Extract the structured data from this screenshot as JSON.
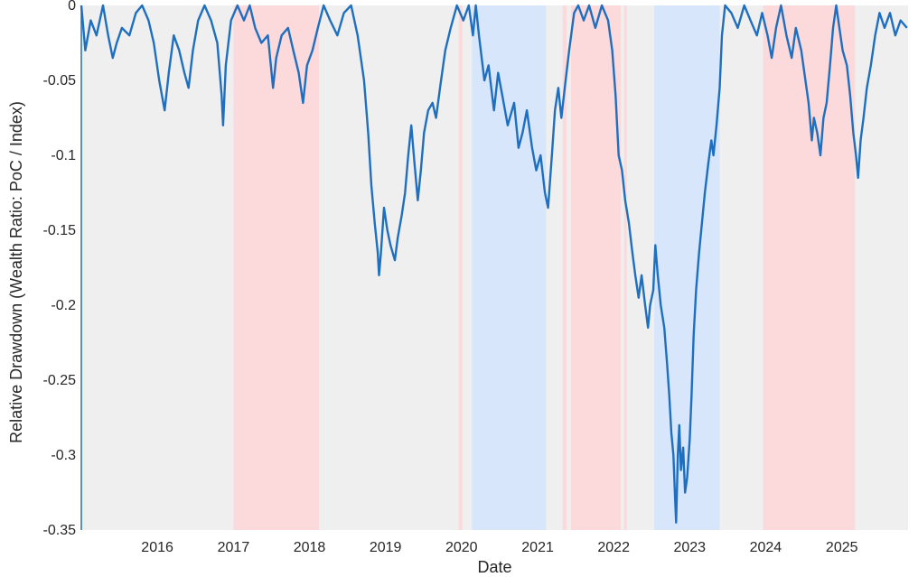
{
  "chart_data": {
    "type": "line",
    "title": "",
    "xlabel": "Date",
    "ylabel": "Relative Drawdown (Wealth Ratio: PoC / Index)",
    "xlim": [
      "2015-01-01",
      "2025-11-15"
    ],
    "ylim": [
      -0.35,
      0
    ],
    "grid": false,
    "legend": "none",
    "x_ticks": [
      {
        "date": "2016-01-01",
        "label": "2016"
      },
      {
        "date": "2017-01-01",
        "label": "2017"
      },
      {
        "date": "2018-01-01",
        "label": "2018"
      },
      {
        "date": "2019-01-01",
        "label": "2019"
      },
      {
        "date": "2020-01-01",
        "label": "2020"
      },
      {
        "date": "2021-01-01",
        "label": "2021"
      },
      {
        "date": "2022-01-01",
        "label": "2022"
      },
      {
        "date": "2023-01-01",
        "label": "2023"
      },
      {
        "date": "2024-01-01",
        "label": "2024"
      },
      {
        "date": "2025-01-01",
        "label": "2025"
      }
    ],
    "y_ticks": [
      {
        "value": 0,
        "label": "0"
      },
      {
        "value": -0.05,
        "label": "-0.05"
      },
      {
        "value": -0.1,
        "label": "-0.1"
      },
      {
        "value": -0.15,
        "label": "-0.15"
      },
      {
        "value": -0.2,
        "label": "-0.2"
      },
      {
        "value": -0.25,
        "label": "-0.25"
      },
      {
        "value": -0.3,
        "label": "-0.3"
      },
      {
        "value": -0.35,
        "label": "-0.35"
      }
    ],
    "colors": {
      "line": "#1f6fc0",
      "background": "#efefef",
      "regime_red": "#fcd9db",
      "regime_blue": "#d8e6fb"
    },
    "regimes": [
      {
        "start": "2017-01-01",
        "end": "2018-02-15",
        "color": "red"
      },
      {
        "start": "2019-12-20",
        "end": "2020-01-05",
        "color": "red"
      },
      {
        "start": "2020-02-20",
        "end": "2021-02-10",
        "color": "blue"
      },
      {
        "start": "2021-05-01",
        "end": "2021-05-20",
        "color": "red"
      },
      {
        "start": "2021-06-10",
        "end": "2022-02-05",
        "color": "red"
      },
      {
        "start": "2022-02-20",
        "end": "2022-03-05",
        "color": "red"
      },
      {
        "start": "2022-07-15",
        "end": "2023-05-25",
        "color": "blue"
      },
      {
        "start": "2023-12-20",
        "end": "2025-03-05",
        "color": "red"
      }
    ],
    "series": [
      {
        "values": [
          [
            "2015-01-01",
            0.0
          ],
          [
            "2015-01-20",
            -0.03
          ],
          [
            "2015-02-15",
            -0.01
          ],
          [
            "2015-03-15",
            -0.02
          ],
          [
            "2015-04-15",
            0.0
          ],
          [
            "2015-05-10",
            -0.02
          ],
          [
            "2015-06-01",
            -0.035
          ],
          [
            "2015-06-20",
            -0.025
          ],
          [
            "2015-07-15",
            -0.015
          ],
          [
            "2015-08-20",
            -0.02
          ],
          [
            "2015-09-20",
            -0.005
          ],
          [
            "2015-10-20",
            0.0
          ],
          [
            "2015-11-20",
            -0.01
          ],
          [
            "2015-12-15",
            -0.025
          ],
          [
            "2016-01-10",
            -0.05
          ],
          [
            "2016-02-05",
            -0.07
          ],
          [
            "2016-02-25",
            -0.045
          ],
          [
            "2016-03-20",
            -0.02
          ],
          [
            "2016-04-15",
            -0.03
          ],
          [
            "2016-05-10",
            -0.045
          ],
          [
            "2016-05-30",
            -0.055
          ],
          [
            "2016-06-20",
            -0.03
          ],
          [
            "2016-07-15",
            -0.01
          ],
          [
            "2016-08-15",
            0.0
          ],
          [
            "2016-09-15",
            -0.01
          ],
          [
            "2016-10-15",
            -0.025
          ],
          [
            "2016-11-05",
            -0.06
          ],
          [
            "2016-11-12",
            -0.08
          ],
          [
            "2016-11-25",
            -0.04
          ],
          [
            "2016-12-20",
            -0.01
          ],
          [
            "2017-01-20",
            0.0
          ],
          [
            "2017-02-20",
            -0.01
          ],
          [
            "2017-03-20",
            0.0
          ],
          [
            "2017-04-15",
            -0.015
          ],
          [
            "2017-05-15",
            -0.025
          ],
          [
            "2017-06-15",
            -0.02
          ],
          [
            "2017-07-10",
            -0.055
          ],
          [
            "2017-07-25",
            -0.035
          ],
          [
            "2017-08-20",
            -0.02
          ],
          [
            "2017-09-20",
            -0.015
          ],
          [
            "2017-10-15",
            -0.03
          ],
          [
            "2017-11-10",
            -0.045
          ],
          [
            "2017-12-01",
            -0.065
          ],
          [
            "2017-12-20",
            -0.04
          ],
          [
            "2018-01-15",
            -0.03
          ],
          [
            "2018-02-10",
            -0.015
          ],
          [
            "2018-03-10",
            0.0
          ],
          [
            "2018-04-10",
            -0.01
          ],
          [
            "2018-05-15",
            -0.02
          ],
          [
            "2018-06-15",
            -0.005
          ],
          [
            "2018-07-20",
            0.0
          ],
          [
            "2018-08-20",
            -0.02
          ],
          [
            "2018-09-20",
            -0.05
          ],
          [
            "2018-10-10",
            -0.085
          ],
          [
            "2018-10-25",
            -0.12
          ],
          [
            "2018-11-10",
            -0.145
          ],
          [
            "2018-11-25",
            -0.165
          ],
          [
            "2018-12-01",
            -0.18
          ],
          [
            "2018-12-10",
            -0.165
          ],
          [
            "2018-12-25",
            -0.135
          ],
          [
            "2019-01-10",
            -0.15
          ],
          [
            "2019-01-25",
            -0.16
          ],
          [
            "2019-02-15",
            -0.17
          ],
          [
            "2019-03-01",
            -0.155
          ],
          [
            "2019-03-20",
            -0.14
          ],
          [
            "2019-04-05",
            -0.125
          ],
          [
            "2019-04-20",
            -0.1
          ],
          [
            "2019-05-05",
            -0.08
          ],
          [
            "2019-05-20",
            -0.105
          ],
          [
            "2019-06-05",
            -0.13
          ],
          [
            "2019-06-20",
            -0.11
          ],
          [
            "2019-07-05",
            -0.085
          ],
          [
            "2019-07-25",
            -0.07
          ],
          [
            "2019-08-15",
            -0.065
          ],
          [
            "2019-09-01",
            -0.075
          ],
          [
            "2019-09-20",
            -0.055
          ],
          [
            "2019-10-15",
            -0.03
          ],
          [
            "2019-11-10",
            -0.015
          ],
          [
            "2019-12-10",
            0.0
          ],
          [
            "2020-01-10",
            -0.01
          ],
          [
            "2020-02-05",
            0.0
          ],
          [
            "2020-02-25",
            -0.02
          ],
          [
            "2020-03-10",
            0.0
          ],
          [
            "2020-03-25",
            -0.02
          ],
          [
            "2020-04-20",
            -0.05
          ],
          [
            "2020-05-10",
            -0.04
          ],
          [
            "2020-06-05",
            -0.07
          ],
          [
            "2020-06-25",
            -0.045
          ],
          [
            "2020-07-15",
            -0.06
          ],
          [
            "2020-08-10",
            -0.08
          ],
          [
            "2020-09-10",
            -0.065
          ],
          [
            "2020-10-01",
            -0.095
          ],
          [
            "2020-10-20",
            -0.085
          ],
          [
            "2020-11-10",
            -0.07
          ],
          [
            "2020-12-05",
            -0.095
          ],
          [
            "2020-12-25",
            -0.11
          ],
          [
            "2021-01-15",
            -0.1
          ],
          [
            "2021-02-05",
            -0.125
          ],
          [
            "2021-02-20",
            -0.135
          ],
          [
            "2021-03-10",
            -0.1
          ],
          [
            "2021-03-25",
            -0.07
          ],
          [
            "2021-04-10",
            -0.055
          ],
          [
            "2021-04-25",
            -0.075
          ],
          [
            "2021-05-15",
            -0.05
          ],
          [
            "2021-06-01",
            -0.03
          ],
          [
            "2021-06-25",
            -0.005
          ],
          [
            "2021-07-15",
            0.0
          ],
          [
            "2021-08-10",
            -0.01
          ],
          [
            "2021-09-05",
            0.0
          ],
          [
            "2021-10-05",
            -0.015
          ],
          [
            "2021-11-05",
            0.0
          ],
          [
            "2021-12-05",
            -0.01
          ],
          [
            "2021-12-25",
            -0.03
          ],
          [
            "2022-01-10",
            -0.06
          ],
          [
            "2022-01-25",
            -0.1
          ],
          [
            "2022-02-10",
            -0.11
          ],
          [
            "2022-02-25",
            -0.13
          ],
          [
            "2022-03-15",
            -0.145
          ],
          [
            "2022-04-01",
            -0.165
          ],
          [
            "2022-04-15",
            -0.18
          ],
          [
            "2022-05-01",
            -0.195
          ],
          [
            "2022-05-15",
            -0.18
          ],
          [
            "2022-06-01",
            -0.2
          ],
          [
            "2022-06-15",
            -0.215
          ],
          [
            "2022-06-25",
            -0.2
          ],
          [
            "2022-07-10",
            -0.19
          ],
          [
            "2022-07-20",
            -0.16
          ],
          [
            "2022-08-01",
            -0.18
          ],
          [
            "2022-08-15",
            -0.2
          ],
          [
            "2022-09-01",
            -0.215
          ],
          [
            "2022-09-15",
            -0.24
          ],
          [
            "2022-09-25",
            -0.26
          ],
          [
            "2022-10-05",
            -0.285
          ],
          [
            "2022-10-15",
            -0.3
          ],
          [
            "2022-10-22",
            -0.325
          ],
          [
            "2022-10-28",
            -0.345
          ],
          [
            "2022-11-05",
            -0.3
          ],
          [
            "2022-11-12",
            -0.28
          ],
          [
            "2022-11-20",
            -0.31
          ],
          [
            "2022-12-01",
            -0.295
          ],
          [
            "2022-12-10",
            -0.325
          ],
          [
            "2022-12-20",
            -0.315
          ],
          [
            "2023-01-01",
            -0.29
          ],
          [
            "2023-01-10",
            -0.26
          ],
          [
            "2023-01-20",
            -0.22
          ],
          [
            "2023-02-01",
            -0.19
          ],
          [
            "2023-02-15",
            -0.165
          ],
          [
            "2023-03-01",
            -0.145
          ],
          [
            "2023-03-15",
            -0.125
          ],
          [
            "2023-04-01",
            -0.105
          ],
          [
            "2023-04-15",
            -0.09
          ],
          [
            "2023-04-25",
            -0.1
          ],
          [
            "2023-05-10",
            -0.08
          ],
          [
            "2023-05-25",
            -0.055
          ],
          [
            "2023-06-05",
            -0.02
          ],
          [
            "2023-06-20",
            0.0
          ],
          [
            "2023-07-20",
            -0.005
          ],
          [
            "2023-08-20",
            -0.015
          ],
          [
            "2023-09-20",
            0.0
          ],
          [
            "2023-10-20",
            -0.01
          ],
          [
            "2023-11-20",
            -0.02
          ],
          [
            "2023-12-15",
            -0.005
          ],
          [
            "2024-01-10",
            -0.02
          ],
          [
            "2024-01-30",
            -0.035
          ],
          [
            "2024-02-20",
            -0.015
          ],
          [
            "2024-03-15",
            0.0
          ],
          [
            "2024-04-10",
            -0.02
          ],
          [
            "2024-05-05",
            -0.035
          ],
          [
            "2024-05-25",
            -0.015
          ],
          [
            "2024-06-20",
            -0.03
          ],
          [
            "2024-07-10",
            -0.05
          ],
          [
            "2024-07-25",
            -0.065
          ],
          [
            "2024-08-10",
            -0.09
          ],
          [
            "2024-08-20",
            -0.075
          ],
          [
            "2024-09-05",
            -0.085
          ],
          [
            "2024-09-20",
            -0.1
          ],
          [
            "2024-10-05",
            -0.075
          ],
          [
            "2024-10-20",
            -0.065
          ],
          [
            "2024-11-05",
            -0.04
          ],
          [
            "2024-11-20",
            -0.015
          ],
          [
            "2024-12-05",
            0.0
          ],
          [
            "2024-12-20",
            -0.015
          ],
          [
            "2025-01-05",
            -0.03
          ],
          [
            "2025-01-25",
            -0.04
          ],
          [
            "2025-02-10",
            -0.06
          ],
          [
            "2025-02-25",
            -0.085
          ],
          [
            "2025-03-10",
            -0.1
          ],
          [
            "2025-03-20",
            -0.115
          ],
          [
            "2025-04-01",
            -0.09
          ],
          [
            "2025-04-15",
            -0.075
          ],
          [
            "2025-05-01",
            -0.055
          ],
          [
            "2025-05-20",
            -0.04
          ],
          [
            "2025-06-10",
            -0.02
          ],
          [
            "2025-07-01",
            -0.005
          ],
          [
            "2025-07-25",
            -0.015
          ],
          [
            "2025-08-20",
            -0.005
          ],
          [
            "2025-09-15",
            -0.02
          ],
          [
            "2025-10-10",
            -0.01
          ],
          [
            "2025-11-10",
            -0.015
          ]
        ]
      }
    ]
  }
}
